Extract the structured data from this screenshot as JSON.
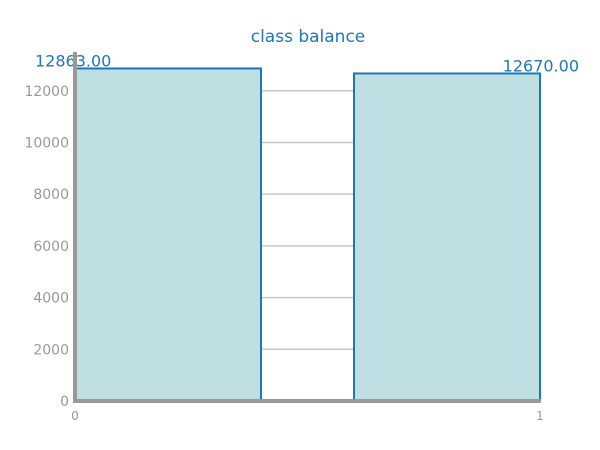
{
  "chart_data": {
    "type": "bar",
    "title": "class balance",
    "categories": [
      "0",
      "1"
    ],
    "x": [
      0,
      1
    ],
    "values": [
      12863,
      12670
    ],
    "data_labels": [
      "12863.00",
      "12670.00"
    ],
    "xlabel": "",
    "ylabel": "",
    "ylim": [
      0,
      13500
    ],
    "yticks": [
      0,
      2000,
      4000,
      6000,
      8000,
      10000,
      12000
    ],
    "grid": true,
    "colors": {
      "bar_fill": "#bedee1",
      "bar_stroke": "#1f77b4",
      "text": "#1f77b4",
      "axis": "#999999",
      "grid": "#c8c8c8"
    }
  }
}
